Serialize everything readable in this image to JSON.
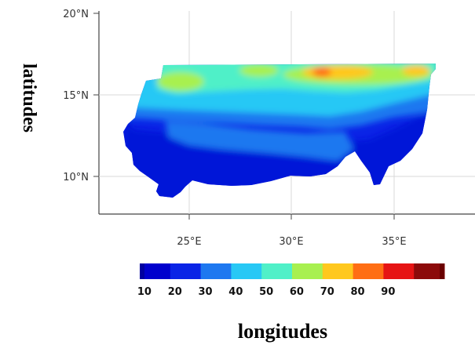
{
  "map": {
    "y_axis_title": "latitudes",
    "x_axis_title": "longitudes",
    "x_ticks": [
      "25°E",
      "30°E",
      "35°E"
    ],
    "y_ticks": [
      "20°N",
      "15°N",
      "10°N"
    ],
    "lon_range": [
      21.5,
      38
    ],
    "lat_range": [
      7.8,
      20.3
    ],
    "grid": true
  },
  "colorbar": {
    "labels": [
      "10",
      "20",
      "30",
      "40",
      "50",
      "60",
      "70",
      "80",
      "90"
    ],
    "colors": [
      "#0000cd",
      "#0a24e6",
      "#1e78f0",
      "#28c8f5",
      "#50f0c8",
      "#a8f050",
      "#ffc81e",
      "#ff6e14",
      "#e61414",
      "#8c0a0a"
    ],
    "ends": [
      "#0000a0",
      "#6a0000"
    ]
  }
}
